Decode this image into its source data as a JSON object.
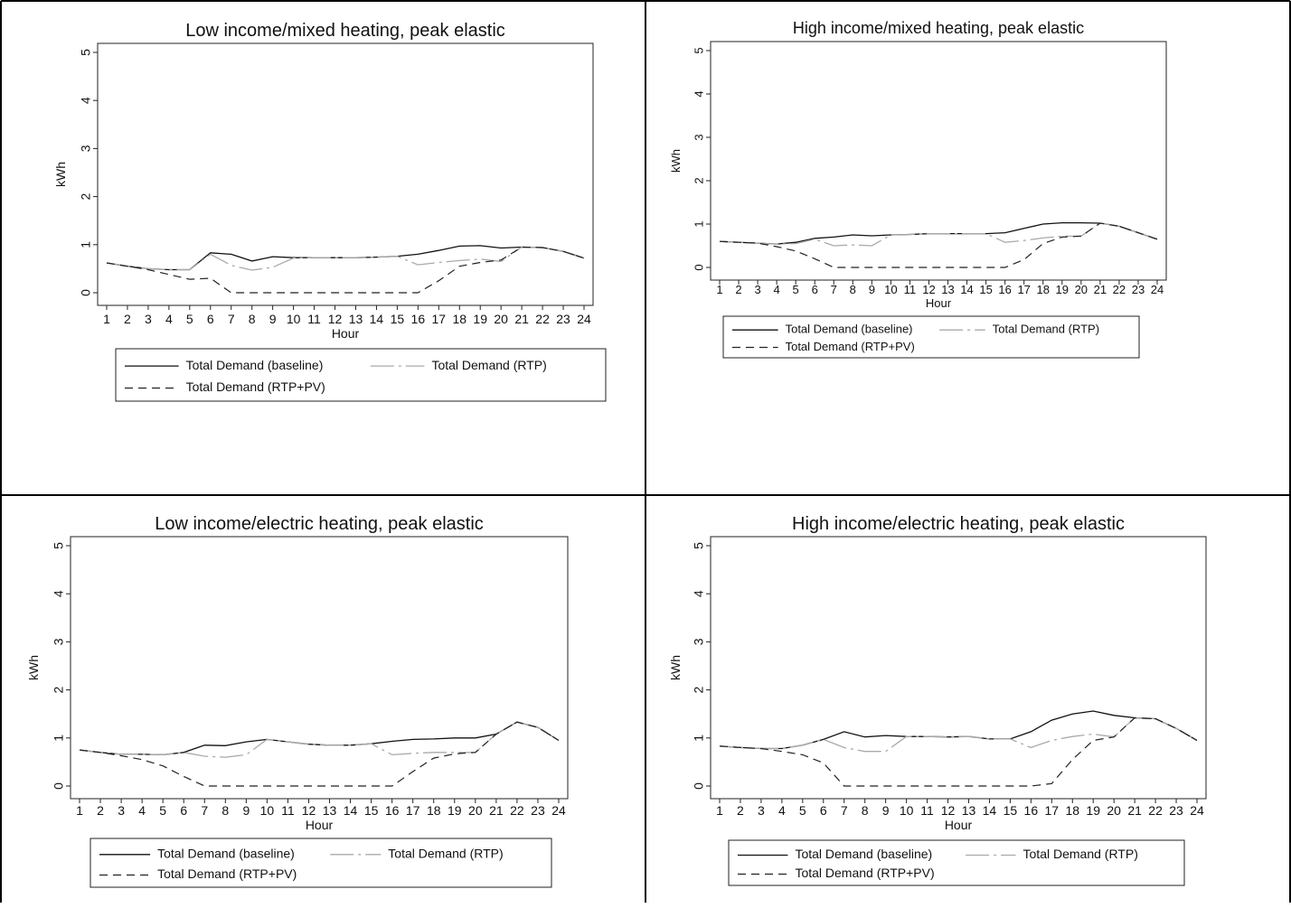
{
  "legend_labels": {
    "baseline": "Total Demand (baseline)",
    "rtp": "Total Demand (RTP)",
    "rtppv": "Total Demand (RTP+PV)"
  },
  "chart_data": [
    {
      "type": "line",
      "title": "Low income/mixed heating, peak elastic",
      "xlabel": "Hour",
      "ylabel": "kWh",
      "ylim": [
        0,
        5
      ],
      "x": [
        1,
        2,
        3,
        4,
        5,
        6,
        7,
        8,
        9,
        10,
        11,
        12,
        13,
        14,
        15,
        16,
        17,
        18,
        19,
        20,
        21,
        22,
        23,
        24
      ],
      "series": [
        {
          "name": "Total Demand (baseline)",
          "values": [
            0.62,
            0.55,
            0.5,
            0.48,
            0.48,
            0.83,
            0.8,
            0.66,
            0.75,
            0.73,
            0.73,
            0.73,
            0.73,
            0.74,
            0.76,
            0.8,
            0.88,
            0.97,
            0.98,
            0.93,
            0.95,
            0.94,
            0.86,
            0.72
          ]
        },
        {
          "name": "Total Demand (RTP)",
          "values": [
            0.62,
            0.55,
            0.5,
            0.48,
            0.48,
            0.8,
            0.57,
            0.47,
            0.53,
            0.72,
            0.73,
            0.73,
            0.73,
            0.74,
            0.76,
            0.58,
            0.63,
            0.67,
            0.7,
            0.65,
            0.95,
            0.94,
            0.86,
            0.72
          ]
        },
        {
          "name": "Total Demand (RTP+PV)",
          "values": [
            0.62,
            0.55,
            0.48,
            0.38,
            0.28,
            0.3,
            0.0,
            0.0,
            0.0,
            0.0,
            0.0,
            0.0,
            0.0,
            0.0,
            0.0,
            0.0,
            0.25,
            0.55,
            0.63,
            0.68,
            0.95,
            0.94,
            0.86,
            0.72
          ]
        }
      ]
    },
    {
      "type": "line",
      "title": "High income/mixed heating, peak elastic",
      "xlabel": "Hour",
      "ylabel": "kWh",
      "ylim": [
        0,
        5
      ],
      "x": [
        1,
        2,
        3,
        4,
        5,
        6,
        7,
        8,
        9,
        10,
        11,
        12,
        13,
        14,
        15,
        16,
        17,
        18,
        19,
        20,
        21,
        22,
        23,
        24
      ],
      "series": [
        {
          "name": "Total Demand (baseline)",
          "values": [
            0.6,
            0.58,
            0.56,
            0.54,
            0.58,
            0.67,
            0.7,
            0.75,
            0.73,
            0.75,
            0.76,
            0.78,
            0.78,
            0.78,
            0.78,
            0.8,
            0.9,
            1.0,
            1.03,
            1.03,
            1.02,
            0.95,
            0.8,
            0.65
          ]
        },
        {
          "name": "Total Demand (RTP)",
          "values": [
            0.6,
            0.58,
            0.56,
            0.54,
            0.55,
            0.65,
            0.5,
            0.52,
            0.5,
            0.75,
            0.76,
            0.78,
            0.78,
            0.78,
            0.78,
            0.58,
            0.62,
            0.68,
            0.72,
            0.72,
            1.02,
            0.95,
            0.8,
            0.65
          ]
        },
        {
          "name": "Total Demand (RTP+PV)",
          "values": [
            0.6,
            0.58,
            0.56,
            0.48,
            0.38,
            0.2,
            0.0,
            0.0,
            0.0,
            0.0,
            0.0,
            0.0,
            0.0,
            0.0,
            0.0,
            0.0,
            0.18,
            0.55,
            0.7,
            0.72,
            1.02,
            0.95,
            0.8,
            0.65
          ]
        }
      ]
    },
    {
      "type": "line",
      "title": "Low income/electric heating, peak elastic",
      "xlabel": "Hour",
      "ylabel": "kWh",
      "ylim": [
        0,
        5
      ],
      "x": [
        1,
        2,
        3,
        4,
        5,
        6,
        7,
        8,
        9,
        10,
        11,
        12,
        13,
        14,
        15,
        16,
        17,
        18,
        19,
        20,
        21,
        22,
        23,
        24
      ],
      "series": [
        {
          "name": "Total Demand (baseline)",
          "values": [
            0.75,
            0.7,
            0.66,
            0.66,
            0.65,
            0.7,
            0.85,
            0.84,
            0.92,
            0.97,
            0.92,
            0.87,
            0.85,
            0.85,
            0.88,
            0.93,
            0.97,
            0.98,
            1.0,
            1.0,
            1.08,
            1.33,
            1.22,
            0.95
          ]
        },
        {
          "name": "Total Demand (RTP)",
          "values": [
            0.75,
            0.7,
            0.66,
            0.66,
            0.65,
            0.7,
            0.62,
            0.6,
            0.65,
            0.97,
            0.92,
            0.87,
            0.85,
            0.85,
            0.88,
            0.65,
            0.68,
            0.7,
            0.7,
            0.7,
            1.08,
            1.33,
            1.22,
            0.95
          ]
        },
        {
          "name": "Total Demand (RTP+PV)",
          "values": [
            0.75,
            0.7,
            0.63,
            0.55,
            0.42,
            0.2,
            0.0,
            0.0,
            0.0,
            0.0,
            0.0,
            0.0,
            0.0,
            0.0,
            0.0,
            0.0,
            0.3,
            0.58,
            0.67,
            0.7,
            1.08,
            1.33,
            1.22,
            0.95
          ]
        }
      ]
    },
    {
      "type": "line",
      "title": "High income/electric heating, peak elastic",
      "xlabel": "Hour",
      "ylabel": "kWh",
      "ylim": [
        0,
        5
      ],
      "x": [
        1,
        2,
        3,
        4,
        5,
        6,
        7,
        8,
        9,
        10,
        11,
        12,
        13,
        14,
        15,
        16,
        17,
        18,
        19,
        20,
        21,
        22,
        23,
        24
      ],
      "series": [
        {
          "name": "Total Demand (baseline)",
          "values": [
            0.83,
            0.8,
            0.78,
            0.78,
            0.85,
            0.97,
            1.13,
            1.02,
            1.05,
            1.03,
            1.03,
            1.02,
            1.03,
            0.98,
            0.98,
            1.13,
            1.37,
            1.5,
            1.56,
            1.47,
            1.42,
            1.4,
            1.2,
            0.95
          ]
        },
        {
          "name": "Total Demand (RTP)",
          "values": [
            0.83,
            0.8,
            0.78,
            0.78,
            0.85,
            0.97,
            0.8,
            0.72,
            0.72,
            1.03,
            1.03,
            1.02,
            1.03,
            0.98,
            0.98,
            0.8,
            0.95,
            1.03,
            1.08,
            1.02,
            1.42,
            1.4,
            1.2,
            0.95
          ]
        },
        {
          "name": "Total Demand (RTP+PV)",
          "values": [
            0.83,
            0.8,
            0.78,
            0.72,
            0.65,
            0.48,
            0.0,
            0.0,
            0.0,
            0.0,
            0.0,
            0.0,
            0.0,
            0.0,
            0.0,
            0.0,
            0.05,
            0.55,
            0.95,
            1.02,
            1.42,
            1.4,
            1.2,
            0.95
          ]
        }
      ]
    }
  ]
}
